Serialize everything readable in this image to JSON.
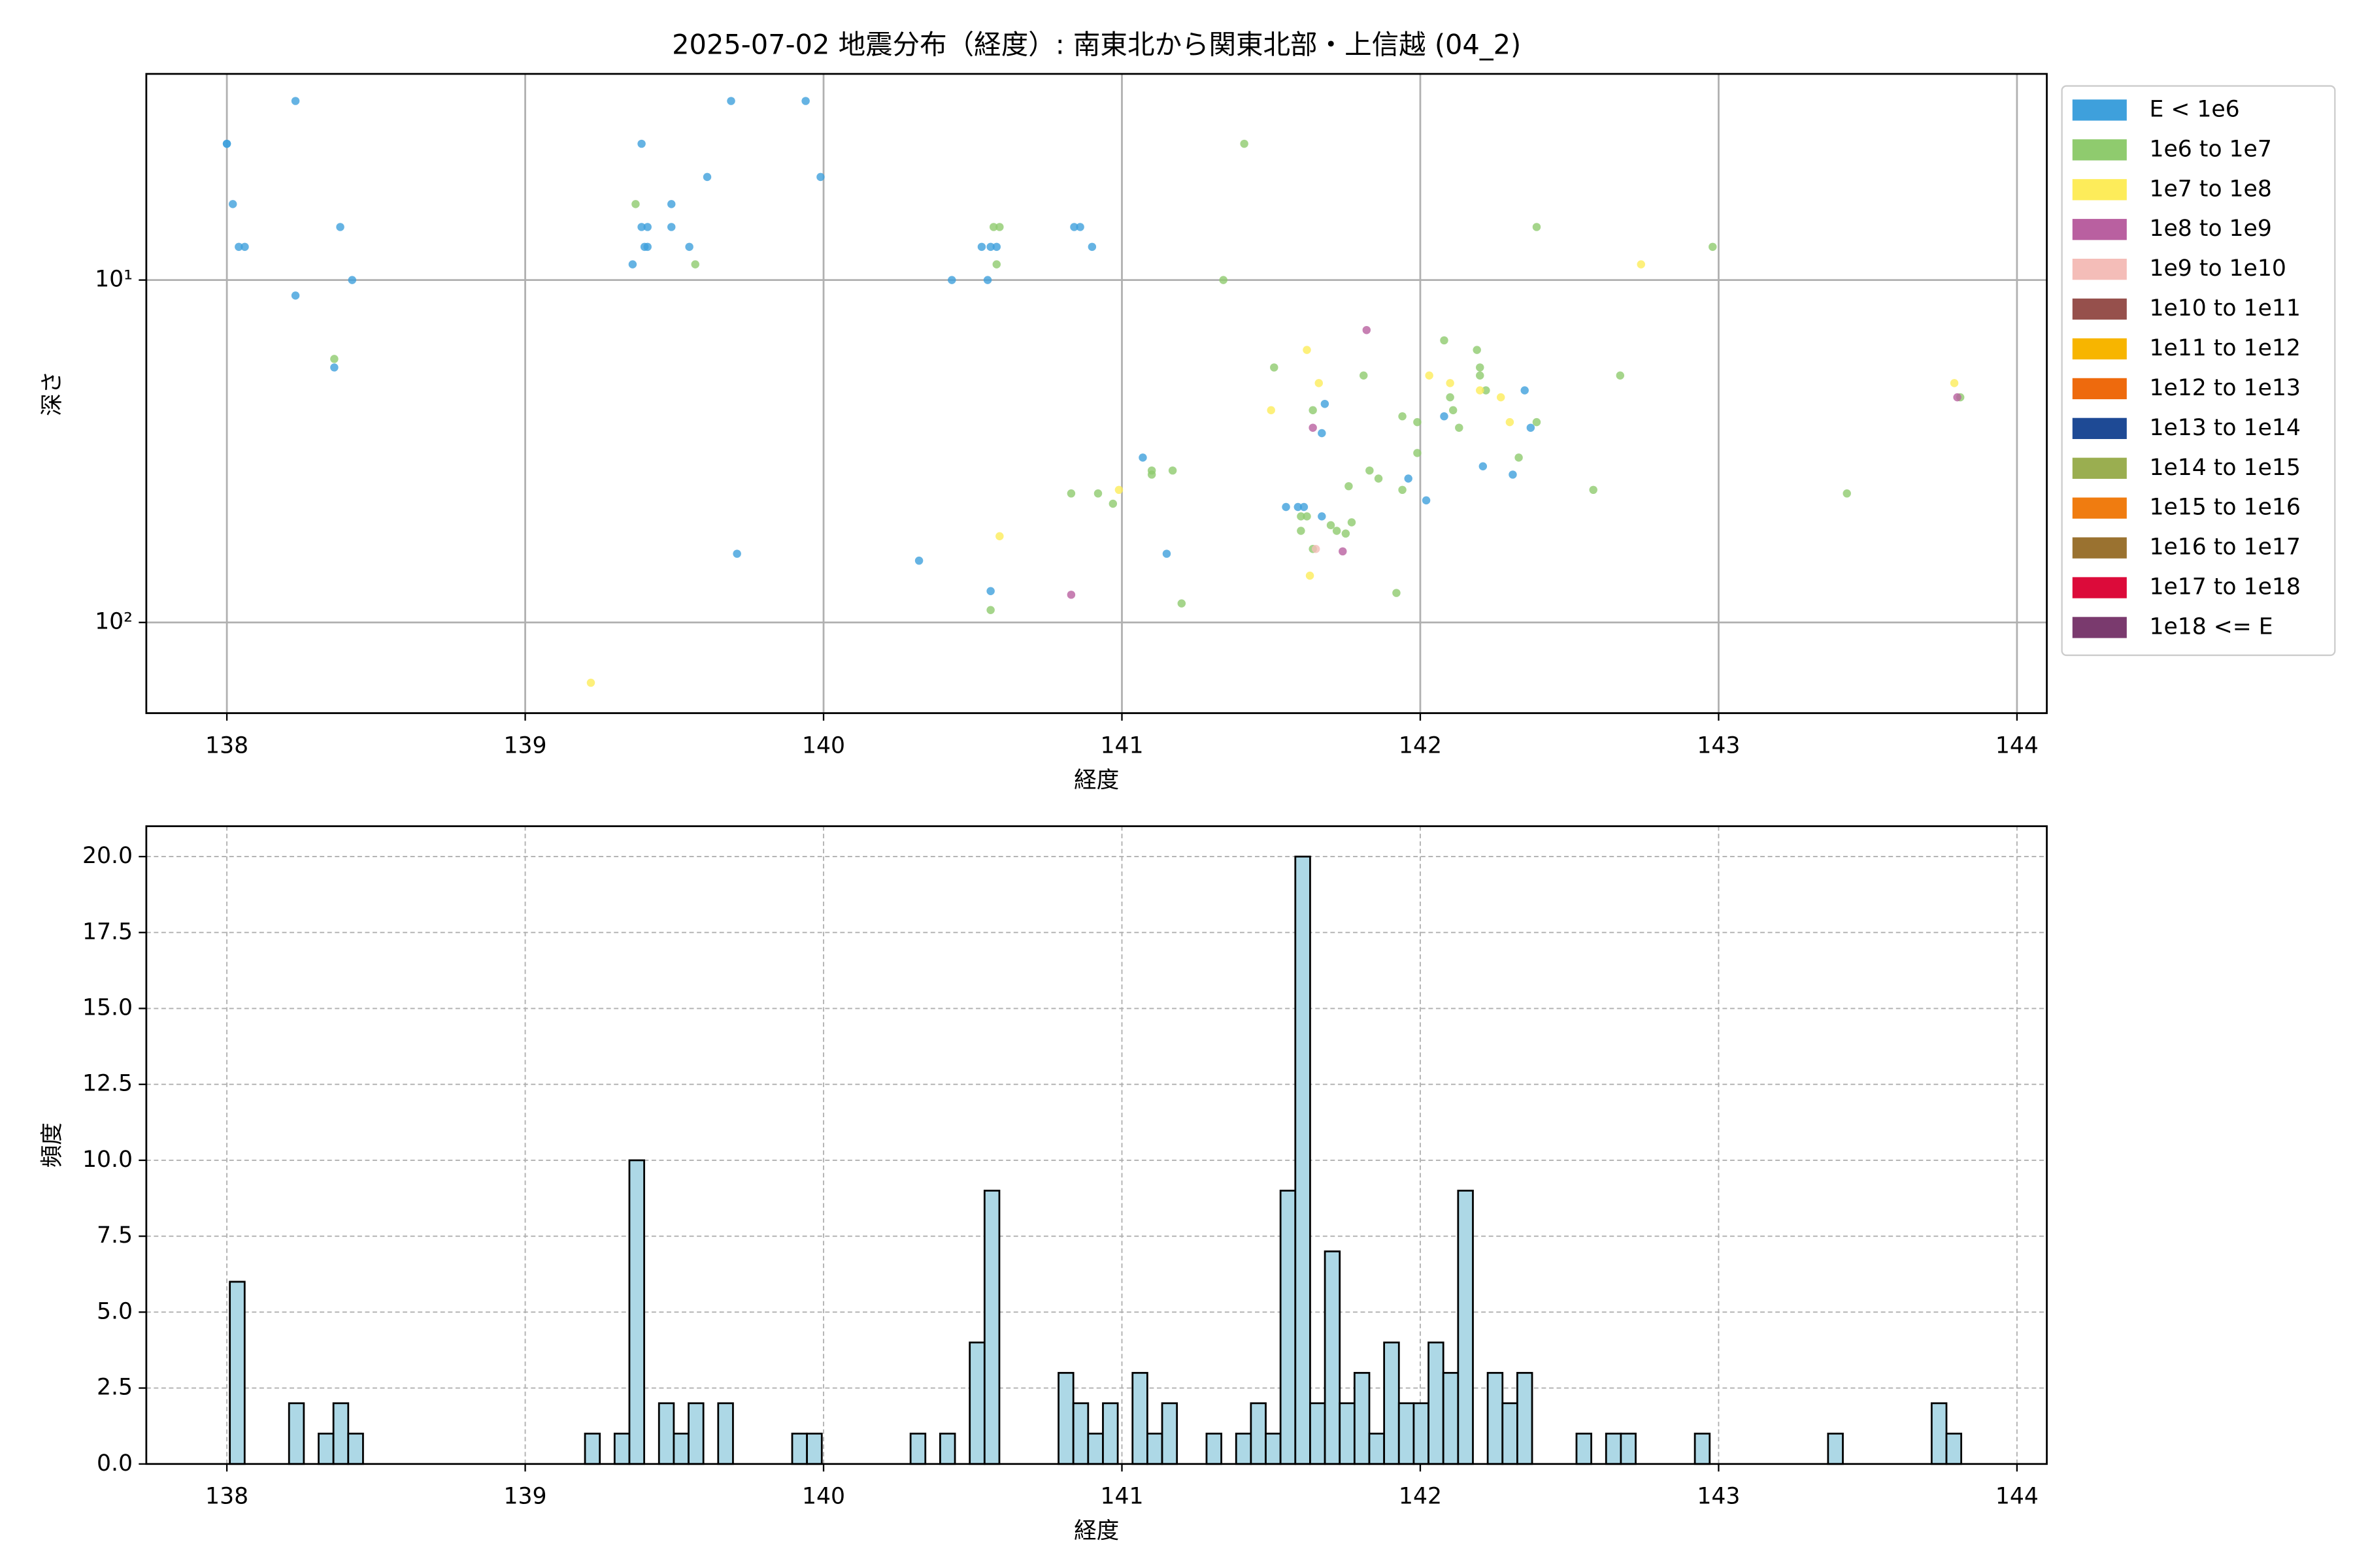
{
  "chart_data": [
    {
      "type": "scatter",
      "title": "2025-07-02 地震分布（経度）: 南東北から関東北部・上信越 (04_2)",
      "xlabel": "経度",
      "ylabel": "深さ",
      "xlim": [
        137.73,
        144.1
      ],
      "xticks": [
        138,
        139,
        140,
        141,
        142,
        143,
        144
      ],
      "ylim": [
        2.5,
        184
      ],
      "log_y": true,
      "y_inverted": true,
      "yticks": [
        {
          "value": 10,
          "label": "10¹"
        },
        {
          "value": 100,
          "label": "10²"
        }
      ],
      "grid": true,
      "legend": "outside upper right",
      "series": [
        {
          "name": "E < 1e6",
          "color": "#3ea0dc",
          "x": [
            138.0,
            138.0,
            138.02,
            138.04,
            138.06,
            138.23,
            138.23,
            138.38,
            138.42,
            138.36,
            139.36,
            139.39,
            139.39,
            139.41,
            139.4,
            139.41,
            139.49,
            139.49,
            139.55,
            139.61,
            139.69,
            139.71,
            139.94,
            139.99,
            140.32,
            140.43,
            140.53,
            140.56,
            140.58,
            140.55,
            140.56,
            140.84,
            140.86,
            140.9,
            141.07,
            141.15,
            141.55,
            141.59,
            141.61,
            141.67,
            141.68,
            141.67,
            141.96,
            142.02,
            142.08,
            142.21,
            142.31,
            142.35,
            142.37
          ],
          "values": [
            4,
            4,
            6,
            8,
            8,
            3,
            11.1,
            7,
            10,
            18,
            9,
            4,
            7,
            7,
            8,
            8,
            7,
            6,
            8,
            5,
            3,
            63,
            3,
            5,
            66,
            10,
            8,
            8,
            8,
            10,
            81,
            7,
            7,
            8,
            33,
            63,
            46,
            46,
            46,
            49,
            23,
            28,
            38,
            44,
            25,
            35,
            37,
            21,
            27
          ]
        },
        {
          "name": "1e6 to 1e7",
          "color": "#8fcb6e",
          "x": [
            139.37,
            139.57,
            138.36,
            140.57,
            140.59,
            140.58,
            140.56,
            140.83,
            140.92,
            140.97,
            141.1,
            141.1,
            141.17,
            141.2,
            141.34,
            141.41,
            141.51,
            141.6,
            141.6,
            141.62,
            141.64,
            141.64,
            141.7,
            141.72,
            141.75,
            141.76,
            141.77,
            141.81,
            141.83,
            141.86,
            141.92,
            141.94,
            141.94,
            141.99,
            141.99,
            142.08,
            142.1,
            142.11,
            142.13,
            142.19,
            142.2,
            142.2,
            142.22,
            142.33,
            142.39,
            142.39,
            142.67,
            142.58,
            142.98,
            143.43,
            143.81
          ],
          "values": [
            6,
            9,
            17,
            7,
            7,
            9,
            92,
            42,
            42,
            45,
            36,
            37,
            36,
            88,
            10,
            4,
            18,
            54,
            49,
            49,
            24,
            61,
            52,
            54,
            55,
            40,
            51,
            19,
            36,
            38,
            82,
            25,
            41,
            32,
            26,
            15,
            22,
            24,
            27,
            16,
            18,
            19,
            21,
            33,
            26,
            7,
            19,
            41,
            8,
            42,
            22
          ]
        },
        {
          "name": "1e7 to 1e8",
          "color": "#fdec5a",
          "x": [
            139.22,
            140.99,
            140.59,
            141.5,
            141.62,
            141.66,
            141.63,
            142.03,
            142.1,
            142.2,
            142.27,
            142.3,
            142.74,
            143.79
          ],
          "values": [
            150,
            41,
            56,
            24,
            16,
            20,
            73,
            19,
            20,
            21,
            22,
            26,
            9,
            20
          ]
        },
        {
          "name": "1e8 to 1e9",
          "color": "#b960a0",
          "x": [
            141.82,
            141.64,
            141.74,
            140.83,
            143.8
          ],
          "values": [
            14,
            27,
            62,
            83,
            22
          ]
        },
        {
          "name": "1e9 to 1e10",
          "color": "#f4bdb8",
          "x": [
            141.65
          ],
          "values": [
            61
          ]
        },
        {
          "name": "1e10 to 1e11",
          "color": "#96504c",
          "x": [],
          "values": []
        },
        {
          "name": "1e11 to 1e12",
          "color": "#f7b500",
          "x": [],
          "values": []
        },
        {
          "name": "1e12 to 1e13",
          "color": "#ee6a0d",
          "x": [],
          "values": []
        },
        {
          "name": "1e13 to 1e14",
          "color": "#1e4a95",
          "x": [],
          "values": []
        },
        {
          "name": "1e14 to 1e15",
          "color": "#9aae50",
          "x": [],
          "values": []
        },
        {
          "name": "1e15 to 1e16",
          "color": "#f07c10",
          "x": [],
          "values": []
        },
        {
          "name": "1e16 to 1e17",
          "color": "#9a7230",
          "x": [],
          "values": []
        },
        {
          "name": "1e17 to 1e18",
          "color": "#dc0b3a",
          "x": [],
          "values": []
        },
        {
          "name": "1e18 <= E",
          "color": "#7a3a6e",
          "x": [],
          "values": []
        }
      ]
    },
    {
      "type": "histogram",
      "xlabel": "経度",
      "ylabel": "頻度",
      "color": "#add8e6",
      "edgecolor": "#000000",
      "xlim": [
        137.73,
        144.1
      ],
      "xticks": [
        138,
        139,
        140,
        141,
        142,
        143,
        144
      ],
      "ylim": [
        0,
        21
      ],
      "yticks": [
        {
          "value": 0,
          "label": "0.0"
        },
        {
          "value": 2.5,
          "label": "2.5"
        },
        {
          "value": 5,
          "label": "5.0"
        },
        {
          "value": 7.5,
          "label": "7.5"
        },
        {
          "value": 10,
          "label": "10.0"
        },
        {
          "value": 12.5,
          "label": "12.5"
        },
        {
          "value": 15,
          "label": "15.0"
        },
        {
          "value": 17.5,
          "label": "17.5"
        },
        {
          "value": 20,
          "label": "20.0"
        }
      ],
      "grid": true,
      "grid_style": "dashed",
      "bins": [
        138.01,
        138.0596,
        138.1092,
        138.1588,
        138.2084,
        138.258,
        138.3076,
        138.3572,
        138.4068,
        138.4564,
        138.506,
        138.5556,
        138.6052,
        138.6548,
        138.7044,
        138.754,
        138.8036,
        138.8532,
        138.9028,
        138.9524,
        139.002,
        139.0516,
        139.1012,
        139.1508,
        139.2004,
        139.25,
        139.2996,
        139.3492,
        139.3988,
        139.4484,
        139.498,
        139.5476,
        139.5972,
        139.6468,
        139.6964,
        139.746,
        139.7956,
        139.8452,
        139.8948,
        139.9444,
        139.994,
        140.0436,
        140.0932,
        140.1428,
        140.1924,
        140.242,
        140.2916,
        140.3412,
        140.3908,
        140.4404,
        140.49,
        140.5396,
        140.5892,
        140.6388,
        140.6884,
        140.738,
        140.7876,
        140.8372,
        140.8868,
        140.9364,
        140.986,
        141.0356,
        141.0852,
        141.1348,
        141.1844,
        141.234,
        141.2836,
        141.3332,
        141.3828,
        141.4324,
        141.482,
        141.5316,
        141.5812,
        141.6308,
        141.6804,
        141.73,
        141.7796,
        141.8292,
        141.8788,
        141.9284,
        141.978,
        142.0276,
        142.0772,
        142.1268,
        142.1764,
        142.226,
        142.2756,
        142.3252,
        142.3748,
        142.4244,
        142.474,
        142.5236,
        142.5732,
        142.6228,
        142.6724,
        142.722,
        142.7716,
        142.8212,
        142.8708,
        142.9204,
        142.97,
        143.0196,
        143.0692,
        143.1188,
        143.1684,
        143.218,
        143.2676,
        143.3172,
        143.3668,
        143.4164,
        143.466,
        143.5156,
        143.5652,
        143.6148,
        143.6644,
        143.714,
        143.7636,
        143.8132
      ],
      "values": [
        6,
        0,
        0,
        0,
        2,
        0,
        1,
        2,
        1,
        0,
        0,
        0,
        0,
        0,
        0,
        0,
        0,
        0,
        0,
        0,
        0,
        0,
        0,
        0,
        1,
        0,
        1,
        10,
        0,
        2,
        1,
        2,
        0,
        2,
        0,
        0,
        0,
        0,
        1,
        1,
        0,
        0,
        0,
        0,
        0,
        0,
        1,
        0,
        1,
        0,
        4,
        9,
        0,
        0,
        0,
        0,
        3,
        2,
        1,
        2,
        0,
        3,
        1,
        2,
        0,
        0,
        1,
        0,
        1,
        2,
        1,
        9,
        20,
        2,
        7,
        2,
        3,
        1,
        4,
        2,
        2,
        4,
        3,
        9,
        0,
        3,
        2,
        3,
        0,
        0,
        0,
        1,
        0,
        1,
        1,
        0,
        0,
        0,
        0,
        1,
        0,
        0,
        0,
        0,
        0,
        0,
        0,
        0,
        1,
        0,
        0,
        0,
        0,
        0,
        0,
        2,
        1
      ]
    }
  ]
}
